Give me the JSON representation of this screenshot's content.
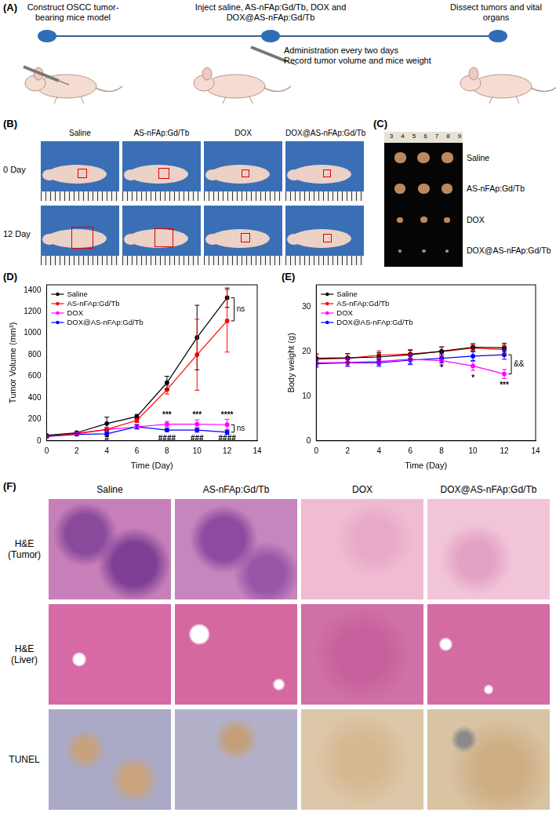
{
  "panel_A": {
    "label": "(A)",
    "steps": [
      "Construct OSCC tumor-bearing mice model",
      "Inject saline, AS-nFAp:Gd/Tb, DOX and DOX@AS-nFAp:Gd/Tb",
      "Dissect tumors and vital organs"
    ],
    "notes": [
      "Administration every two days",
      "Record tumor volume and mice weight"
    ]
  },
  "panel_B": {
    "label": "(B)",
    "columns": [
      "Saline",
      "AS-nFAp:Gd/Tb",
      "DOX",
      "DOX@AS-nFAp:Gd/Tb"
    ],
    "rows": [
      "0 Day",
      "12 Day"
    ]
  },
  "panel_C": {
    "label": "(C)",
    "ruler": [
      3,
      4,
      5,
      6,
      7,
      8,
      9
    ],
    "rows": [
      "Saline",
      "AS-nFAp:Gd/Tb",
      "DOX",
      "DOX@AS-nFAp:Gd/Tb"
    ]
  },
  "chart_data": [
    {
      "type": "line",
      "panel_label": "(D)",
      "x_label": "Time (Day)",
      "y_label": "Tumor Volume (mm³)",
      "x": [
        0,
        2,
        4,
        6,
        8,
        10,
        12
      ],
      "xlim": [
        0,
        14
      ],
      "xticks": [
        0,
        2,
        4,
        6,
        8,
        10,
        12,
        14
      ],
      "ylim": [
        0,
        1450
      ],
      "yticks": [
        0,
        200,
        400,
        600,
        800,
        1000,
        1200,
        1400
      ],
      "grid": false,
      "legend": "upper left",
      "series": [
        {
          "name": "Saline",
          "color": "#000000",
          "marker": "circle",
          "line_style": "solid",
          "values": [
            50,
            75,
            160,
            225,
            540,
            960,
            1330
          ],
          "errors": [
            10,
            10,
            60,
            20,
            60,
            300,
            90
          ]
        },
        {
          "name": "AS-nFAp:Gd/Tb",
          "color": "#ff0000",
          "marker": "circle",
          "line_style": "solid",
          "values": [
            45,
            65,
            105,
            190,
            475,
            800,
            1115
          ],
          "errors": [
            10,
            10,
            20,
            20,
            40,
            330,
            290
          ]
        },
        {
          "name": "DOX",
          "color": "#ff00ff",
          "marker": "circle",
          "line_style": "solid",
          "values": [
            45,
            70,
            105,
            130,
            155,
            155,
            150
          ],
          "errors": [
            10,
            10,
            20,
            20,
            25,
            40,
            50
          ]
        },
        {
          "name": "DOX@AS-nFAp:Gd/Tb",
          "color": "#0000ff",
          "marker": "circle",
          "line_style": "solid",
          "values": [
            40,
            60,
            65,
            130,
            100,
            100,
            80
          ],
          "errors": [
            10,
            10,
            15,
            20,
            15,
            20,
            20
          ]
        }
      ],
      "annotations": [
        {
          "text": "***",
          "x": 8,
          "y": 240
        },
        {
          "text": "***",
          "x": 10,
          "y": 240
        },
        {
          "text": "****",
          "x": 12,
          "y": 240
        },
        {
          "text": "#",
          "x": 4,
          "y": 20
        },
        {
          "text": "####",
          "x": 8,
          "y": 20
        },
        {
          "text": "###",
          "x": 10,
          "y": 20
        },
        {
          "text": "####",
          "x": 12,
          "y": 20
        }
      ],
      "brackets": [
        {
          "text": "ns",
          "x": 12,
          "y1": 1115,
          "y2": 1330
        },
        {
          "text": "ns",
          "x": 12,
          "y1": 80,
          "y2": 150
        }
      ]
    },
    {
      "type": "line",
      "panel_label": "(E)",
      "x_label": "Time (Day)",
      "y_label": "Body weight (g)",
      "x": [
        0,
        2,
        4,
        6,
        8,
        10,
        12
      ],
      "xlim": [
        0,
        14
      ],
      "xticks": [
        0,
        2,
        4,
        6,
        8,
        10,
        12,
        14
      ],
      "ylim": [
        0,
        35
      ],
      "yticks": [
        0,
        10,
        20,
        30
      ],
      "grid": false,
      "legend": "upper left",
      "series": [
        {
          "name": "Saline",
          "color": "#000000",
          "marker": "circle",
          "line_style": "solid",
          "values": [
            18.5,
            18.6,
            18.8,
            19.3,
            20.1,
            21.0,
            20.9
          ],
          "errors": [
            1,
            1,
            1,
            1,
            1,
            0.8,
            1
          ]
        },
        {
          "name": "AS-nFAp:Gd/Tb",
          "color": "#ff0000",
          "marker": "circle",
          "line_style": "solid",
          "values": [
            18.3,
            18.5,
            19.2,
            19.5,
            20.0,
            20.8,
            20.5
          ],
          "errors": [
            1,
            1,
            1,
            1,
            1,
            0.8,
            1
          ]
        },
        {
          "name": "DOX",
          "color": "#ff00ff",
          "marker": "circle",
          "line_style": "solid",
          "values": [
            17.5,
            17.6,
            17.8,
            18.3,
            18.0,
            16.8,
            15.0
          ],
          "errors": [
            0.8,
            0.8,
            0.8,
            1,
            1,
            1,
            1
          ]
        },
        {
          "name": "DOX@AS-nFAp:Gd/Tb",
          "color": "#0000ff",
          "marker": "circle",
          "line_style": "solid",
          "values": [
            17.3,
            17.5,
            17.5,
            18.1,
            18.5,
            19.0,
            19.3
          ],
          "errors": [
            0.8,
            0.8,
            0.8,
            1,
            1,
            1,
            1
          ]
        }
      ],
      "annotations": [
        {
          "text": "*",
          "x": 8,
          "y": 16.3
        },
        {
          "text": "*",
          "x": 10,
          "y": 14
        },
        {
          "text": "***",
          "x": 12,
          "y": 12.5
        }
      ],
      "brackets": [
        {
          "text": "&&",
          "x": 12,
          "y1": 15.0,
          "y2": 19.3
        }
      ]
    }
  ],
  "panel_F": {
    "label": "(F)",
    "columns": [
      "Saline",
      "AS-nFAp:Gd/Tb",
      "DOX",
      "DOX@AS-nFAp:Gd/Tb"
    ],
    "rows": [
      [
        "H&E",
        "(Tumor)"
      ],
      [
        "H&E",
        "(Liver)"
      ],
      [
        "TUNEL"
      ]
    ]
  }
}
